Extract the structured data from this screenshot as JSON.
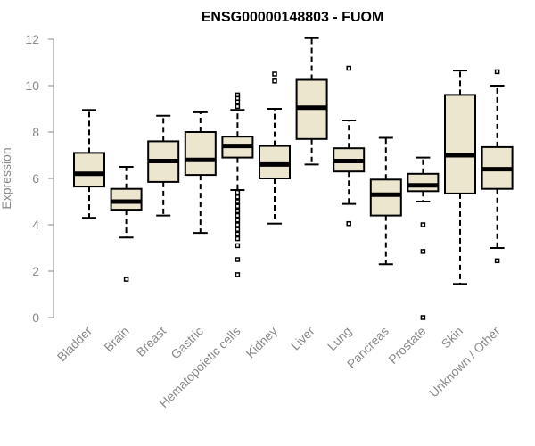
{
  "chart_data": {
    "type": "boxplot",
    "title": "ENSG00000148803 - FUOM",
    "xlabel": "",
    "ylabel": "Expression",
    "ylim": [
      0,
      12
    ],
    "yticks": [
      0,
      2,
      4,
      6,
      8,
      10,
      12
    ],
    "box_color": "#ede6cf",
    "categories": [
      "Bladder",
      "Brain",
      "Breast",
      "Gastric",
      "Hematopoietic cells",
      "Kidney",
      "Liver",
      "Lung",
      "Pancreas",
      "Prostate",
      "Skin",
      "Unknown / Other"
    ],
    "boxes": [
      {
        "whislo": 4.3,
        "q1": 5.65,
        "med": 6.2,
        "q3": 7.1,
        "whishi": 8.95,
        "fliers": []
      },
      {
        "whislo": 3.45,
        "q1": 4.65,
        "med": 5.0,
        "q3": 5.55,
        "whishi": 6.5,
        "fliers": [
          1.65
        ]
      },
      {
        "whislo": 4.4,
        "q1": 5.85,
        "med": 6.75,
        "q3": 7.6,
        "whishi": 8.7,
        "fliers": []
      },
      {
        "whislo": 3.65,
        "q1": 6.15,
        "med": 6.8,
        "q3": 8.0,
        "whishi": 8.85,
        "fliers": []
      },
      {
        "whislo": 5.5,
        "q1": 6.9,
        "med": 7.4,
        "q3": 7.8,
        "whishi": 8.95,
        "fliers": [
          9.1,
          9.3,
          9.45,
          9.6,
          5.4,
          5.2,
          5.0,
          4.8,
          4.6,
          4.4,
          4.2,
          4.0,
          3.8,
          3.6,
          3.4,
          3.1,
          2.5,
          1.85
        ]
      },
      {
        "whislo": 4.05,
        "q1": 6.0,
        "med": 6.6,
        "q3": 7.4,
        "whishi": 9.0,
        "fliers": [
          10.2,
          10.5
        ]
      },
      {
        "whislo": 6.6,
        "q1": 7.7,
        "med": 9.05,
        "q3": 10.25,
        "whishi": 12.05,
        "fliers": []
      },
      {
        "whislo": 4.9,
        "q1": 6.3,
        "med": 6.75,
        "q3": 7.3,
        "whishi": 8.5,
        "fliers": [
          4.05,
          10.75
        ]
      },
      {
        "whislo": 2.3,
        "q1": 4.4,
        "med": 5.3,
        "q3": 5.95,
        "whishi": 7.75,
        "fliers": []
      },
      {
        "whislo": 5.0,
        "q1": 5.45,
        "med": 5.7,
        "q3": 6.2,
        "whishi": 6.9,
        "fliers": [
          4.0,
          2.85,
          0.0
        ]
      },
      {
        "whislo": 1.45,
        "q1": 5.35,
        "med": 7.0,
        "q3": 9.6,
        "whishi": 10.65,
        "fliers": []
      },
      {
        "whislo": 3.0,
        "q1": 5.55,
        "med": 6.4,
        "q3": 7.35,
        "whishi": 10.0,
        "fliers": [
          2.45,
          10.6
        ]
      }
    ]
  }
}
